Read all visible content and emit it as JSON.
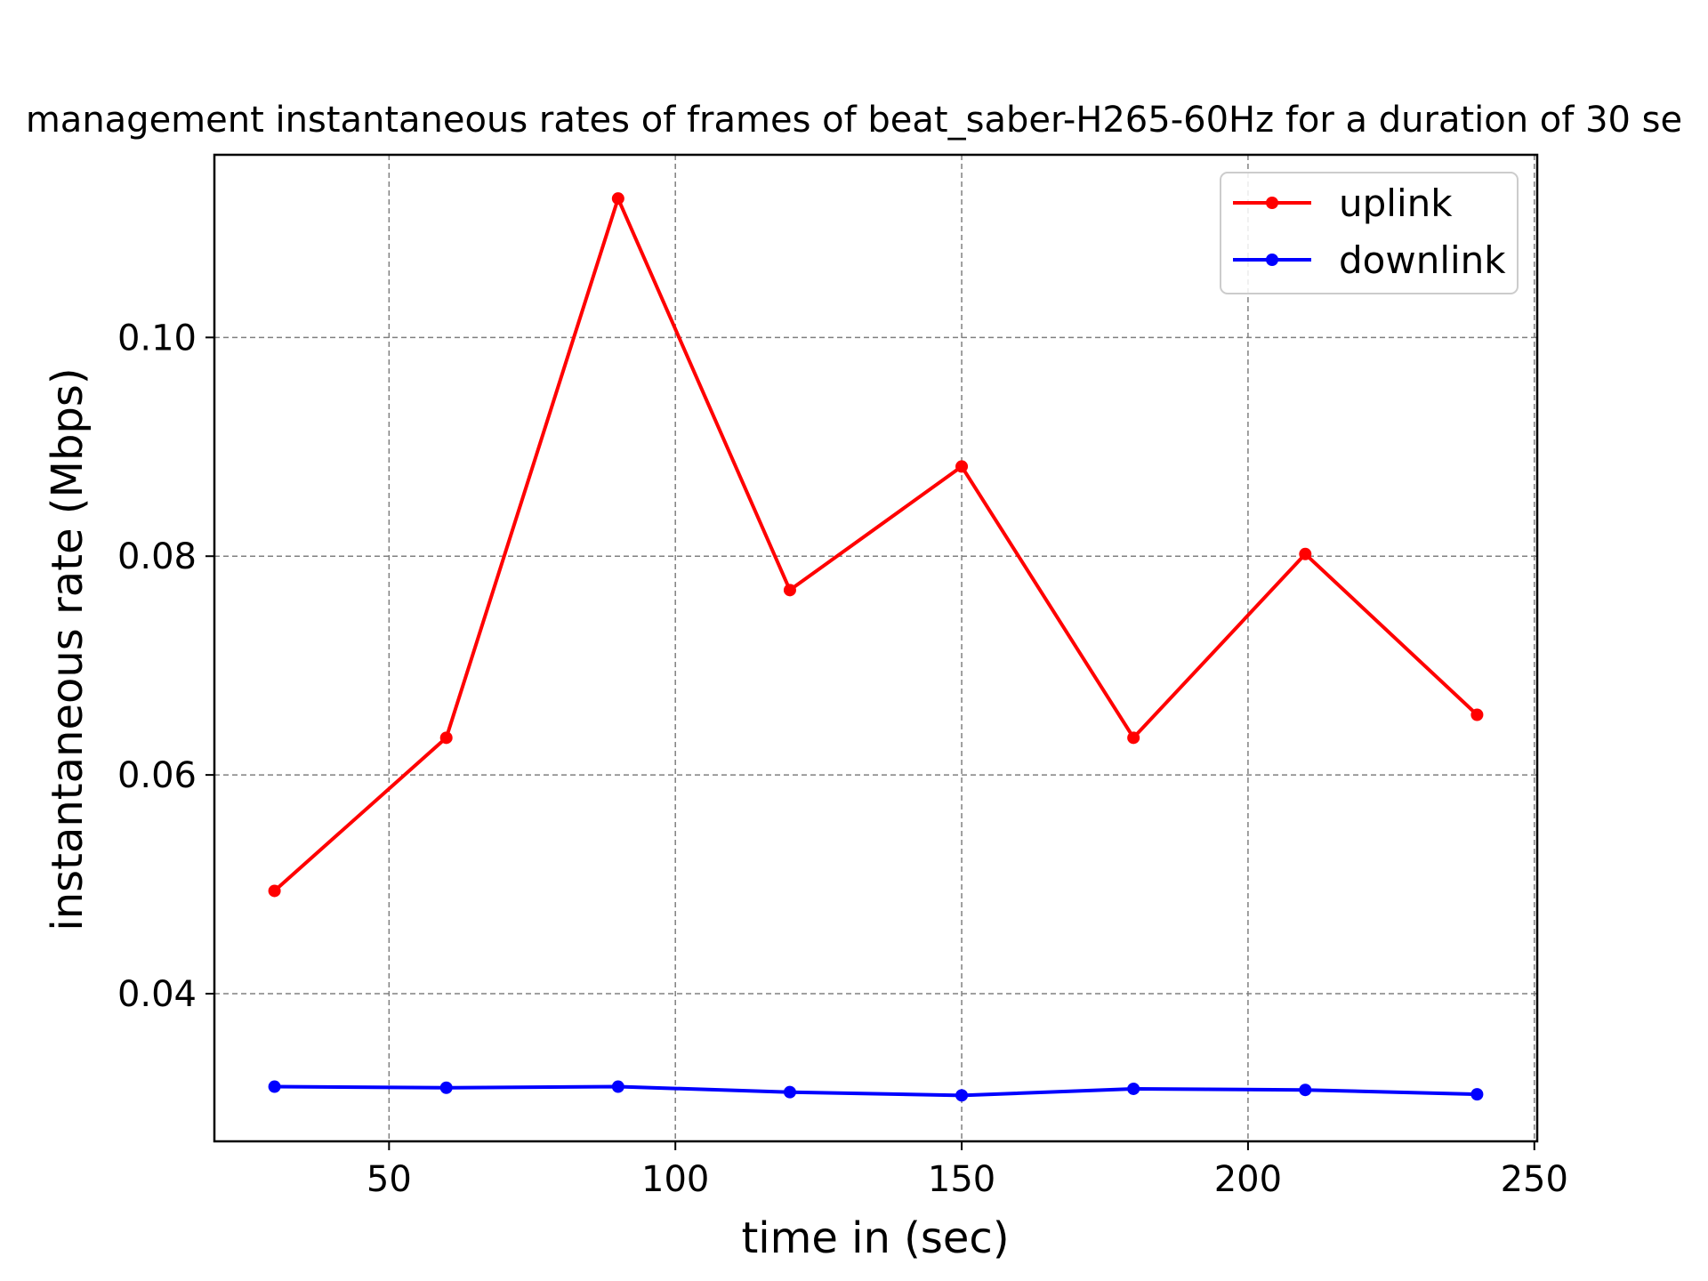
{
  "chart_data": {
    "type": "line",
    "title": "management instantaneous rates of frames of beat_saber-H265-60Hz for a duration of 30 se",
    "xlabel": "time in (sec)",
    "ylabel": "instantaneous rate (Mbps)",
    "x": [
      30,
      60,
      90,
      120,
      150,
      180,
      210,
      240
    ],
    "xlim": [
      19.5,
      250.5
    ],
    "ylim": [
      0.0265,
      0.1167
    ],
    "xticks": [
      50,
      100,
      150,
      200,
      250
    ],
    "yticks": [
      0.04,
      0.06,
      0.08,
      0.1
    ],
    "xtick_labels": [
      "50",
      "100",
      "150",
      "200",
      "250"
    ],
    "ytick_labels": [
      "0.04",
      "0.06",
      "0.08",
      "0.10"
    ],
    "grid": true,
    "legend_position": "top-right",
    "series": [
      {
        "name": "uplink",
        "color": "#ff0000",
        "values": [
          0.0494,
          0.0634,
          0.1127,
          0.0769,
          0.0882,
          0.0634,
          0.0802,
          0.0655
        ]
      },
      {
        "name": "downlink",
        "color": "#0000ff",
        "values": [
          0.0315,
          0.0314,
          0.0315,
          0.031,
          0.0307,
          0.0313,
          0.0312,
          0.0308
        ]
      }
    ]
  }
}
